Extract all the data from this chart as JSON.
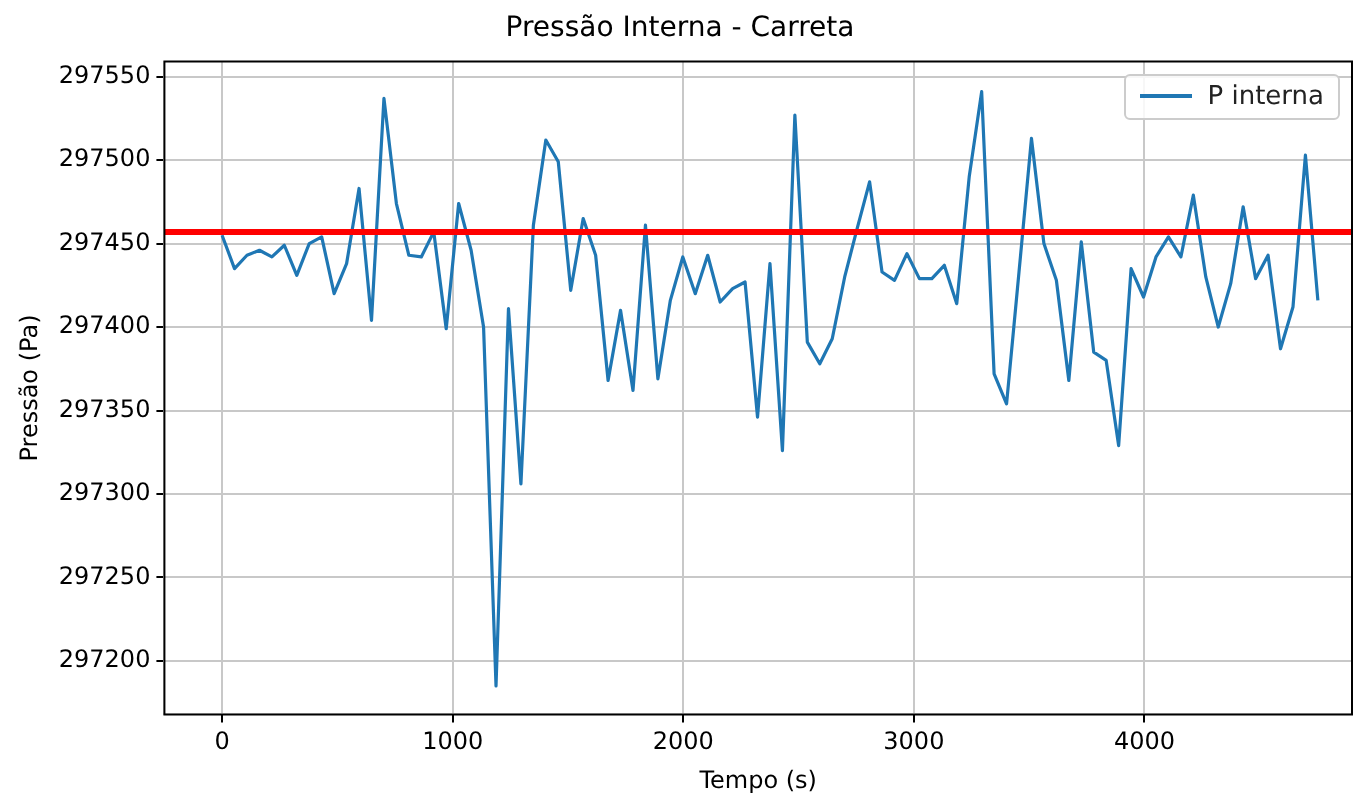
{
  "chart_data": {
    "type": "line",
    "title": "Pressão Interna - Carreta",
    "xlabel": "Tempo (s)",
    "ylabel": "Pressão (Pa)",
    "x": [
      0,
      54,
      108,
      162,
      216,
      270,
      324,
      378,
      432,
      486,
      540,
      594,
      648,
      702,
      756,
      810,
      864,
      918,
      972,
      1026,
      1080,
      1134,
      1188,
      1242,
      1296,
      1350,
      1404,
      1458,
      1512,
      1566,
      1620,
      1674,
      1728,
      1782,
      1836,
      1890,
      1944,
      1998,
      2052,
      2106,
      2160,
      2214,
      2268,
      2322,
      2376,
      2430,
      2484,
      2538,
      2592,
      2646,
      2700,
      2754,
      2808,
      2862,
      2916,
      2970,
      3024,
      3078,
      3132,
      3186,
      3240,
      3294,
      3348,
      3402,
      3456,
      3510,
      3564,
      3618,
      3672,
      3726,
      3780,
      3834,
      3888,
      3942,
      3996,
      4050,
      4104,
      4158,
      4212,
      4266,
      4320,
      4374,
      4428,
      4482,
      4536,
      4590,
      4644,
      4698,
      4752
    ],
    "series": [
      {
        "name": "P interna",
        "color": "#1f77b4",
        "values": [
          297455,
          297435,
          297443,
          297446,
          297442,
          297449,
          297431,
          297450,
          297454,
          297420,
          297438,
          297483,
          297404,
          297537,
          297474,
          297443,
          297442,
          297457,
          297399,
          297474,
          297446,
          297400,
          297185,
          297411,
          297306,
          297461,
          297512,
          297499,
          297422,
          297465,
          297443,
          297368,
          297410,
          297362,
          297461,
          297369,
          297416,
          297442,
          297420,
          297443,
          297415,
          297423,
          297427,
          297346,
          297438,
          297326,
          297527,
          297391,
          297378,
          297393,
          297430,
          297459,
          297487,
          297433,
          297428,
          297444,
          297429,
          297429,
          297437,
          297414,
          297490,
          297541,
          297372,
          297354,
          297433,
          297513,
          297450,
          297428,
          297368,
          297451,
          297385,
          297380,
          297329,
          297435,
          297418,
          297442,
          297454,
          297442,
          297479,
          297430,
          297400,
          297426,
          297472,
          297429,
          297443,
          297387,
          297412,
          297503,
          297416
        ]
      }
    ],
    "xlim": [
      -250,
      4900
    ],
    "xticks": [
      0,
      1000,
      2000,
      3000,
      4000
    ],
    "ylim": [
      297168,
      297559
    ],
    "yticks": [
      297200,
      297250,
      297300,
      297350,
      297400,
      297450,
      297500,
      297550
    ],
    "ref_lines": [
      {
        "axis": "y",
        "value": 297457,
        "color": "#ff0000"
      }
    ],
    "grid": true,
    "legend": "top right",
    "marker": "none",
    "line_style": "solid"
  }
}
